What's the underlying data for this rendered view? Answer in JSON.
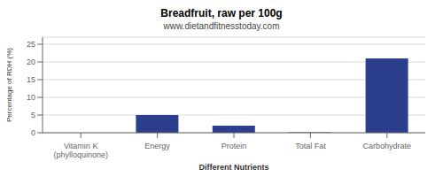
{
  "chart_data": {
    "type": "bar",
    "title": "Breadfruit, raw per 100g",
    "subtitle": "www.dietandfitnesstoday.com",
    "xlabel": "Different Nutrients",
    "ylabel": "Percentage of RDH (%)",
    "categories": [
      "Vitamin K (phylloquinone)",
      "Energy",
      "Protein",
      "Total Fat",
      "Carbohydrate"
    ],
    "values": [
      0.0,
      5.0,
      2.0,
      0.1,
      21.0
    ],
    "color": "#2b3f8c",
    "ylim": [
      0,
      27
    ],
    "yticks": [
      0,
      5,
      10,
      15,
      20,
      25
    ],
    "grid": true
  }
}
